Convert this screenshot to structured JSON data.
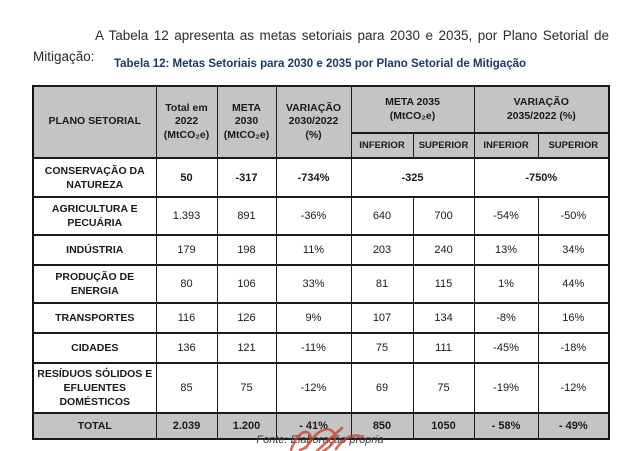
{
  "intro": {
    "text": "A Tabela 12 apresenta as metas setoriais para 2030 e 2035, por Plano Setorial de Mitigação:"
  },
  "caption": "Tabela 12: Metas Setoriais para 2030 e 2035 por Plano Setorial de Mitigação",
  "source": "Fonte: Elaboração própria",
  "colors": {
    "header_bg": "#c4c4c4",
    "total_row_bg": "#c4c4c4",
    "caption_text": "#1f3864",
    "table_border": "#1a1a1a",
    "watermark_red": "#c43b2e"
  },
  "table": {
    "header": {
      "plano": "PLANO SETORIAL",
      "total2022": "Total em\n2022\n(MtCO₂e)",
      "meta2030": "META\n2030\n(MtCO₂e)",
      "var2030": "VARIAÇÃO\n2030/2022\n(%)",
      "meta2035": "META 2035\n(MtCO₂e)",
      "var2035": "VARIAÇÃO\n2035/2022 (%)",
      "inferior": "INFERIOR",
      "superior": "SUPERIOR"
    },
    "rows": [
      {
        "name": "CONSERVAÇÃO DA NATUREZA",
        "total2022": "50",
        "meta2030": "-317",
        "var2030": "-734%",
        "meta2035_merged": "-325",
        "var2035_merged": "-750%",
        "merged": true,
        "bold_values": true
      },
      {
        "name": "AGRICULTURA E PECUÁRIA",
        "total2022": "1.393",
        "meta2030": "891",
        "var2030": "-36%",
        "meta2035_inferior": "640",
        "meta2035_superior": "700",
        "var2035_inferior": "-54%",
        "var2035_superior": "-50%"
      },
      {
        "name": "INDÚSTRIA",
        "total2022": "179",
        "meta2030": "198",
        "var2030": "11%",
        "meta2035_inferior": "203",
        "meta2035_superior": "240",
        "var2035_inferior": "13%",
        "var2035_superior": "34%"
      },
      {
        "name": "PRODUÇÃO DE ENERGIA",
        "total2022": "80",
        "meta2030": "106",
        "var2030": "33%",
        "meta2035_inferior": "81",
        "meta2035_superior": "115",
        "var2035_inferior": "1%",
        "var2035_superior": "44%"
      },
      {
        "name": "TRANSPORTES",
        "total2022": "116",
        "meta2030": "126",
        "var2030": "9%",
        "meta2035_inferior": "107",
        "meta2035_superior": "134",
        "var2035_inferior": "-8%",
        "var2035_superior": "16%"
      },
      {
        "name": "CIDADES",
        "total2022": "136",
        "meta2030": "121",
        "var2030": "-11%",
        "meta2035_inferior": "75",
        "meta2035_superior": "111",
        "var2035_inferior": "-45%",
        "var2035_superior": "-18%"
      },
      {
        "name": "RESÍDUOS SÓLIDOS E EFLUENTES DOMÉSTICOS",
        "total2022": "85",
        "meta2030": "75",
        "var2030": "-12%",
        "meta2035_inferior": "69",
        "meta2035_superior": "75",
        "var2035_inferior": "-19%",
        "var2035_superior": "-12%"
      },
      {
        "name": "TOTAL",
        "total2022": "2.039",
        "meta2030": "1.200",
        "var2030": "- 41%",
        "meta2035_inferior": "850",
        "meta2035_superior": "1050",
        "var2035_inferior": "- 58%",
        "var2035_superior": "- 49%",
        "total": true
      }
    ]
  }
}
